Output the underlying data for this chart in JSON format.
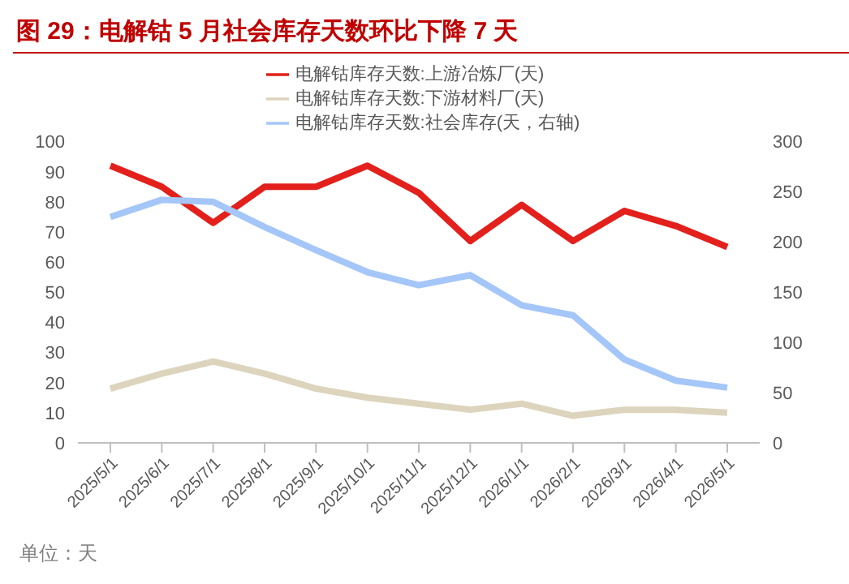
{
  "chart_data": {
    "type": "line",
    "title": "图 29：电解钴 5 月社会库存天数环比下降 7 天",
    "categories": [
      "2025/5/1",
      "2025/6/1",
      "2025/7/1",
      "2025/8/1",
      "2025/9/1",
      "2025/10/1",
      "2025/11/1",
      "2025/12/1",
      "2026/1/1",
      "2026/2/1",
      "2026/3/1",
      "2026/4/1",
      "2026/5/1"
    ],
    "series": [
      {
        "name": "电解钴库存天数:上游冶炼厂(天)",
        "color": "#e3201b",
        "values": [
          92,
          85,
          73,
          85,
          85,
          92,
          83,
          67,
          79,
          67,
          77,
          72,
          65
        ]
      },
      {
        "name": "电解钴库存天数:下游材料厂(天)",
        "color": "#ddd4bd",
        "values": [
          18,
          23,
          27,
          23,
          18,
          15,
          13,
          11,
          13,
          9,
          11,
          11,
          10
        ]
      },
      {
        "name": "电解钴库存天数:社会库存(天，右轴)",
        "color": "#a4c6f8",
        "axis": "y2",
        "values": [
          225,
          242,
          240,
          215,
          192,
          170,
          157,
          167,
          137,
          127,
          83,
          62,
          55
        ]
      }
    ],
    "ylim": [
      0,
      100
    ],
    "yticks": [
      0,
      10,
      20,
      30,
      40,
      50,
      60,
      70,
      80,
      90,
      100
    ],
    "y2lim": [
      0,
      300
    ],
    "y2ticks": [
      0,
      50,
      100,
      150,
      200,
      250,
      300
    ],
    "grid": false,
    "legend": "top",
    "marker": "none",
    "line_style": "solid",
    "annotations": [
      "单位：天"
    ]
  }
}
